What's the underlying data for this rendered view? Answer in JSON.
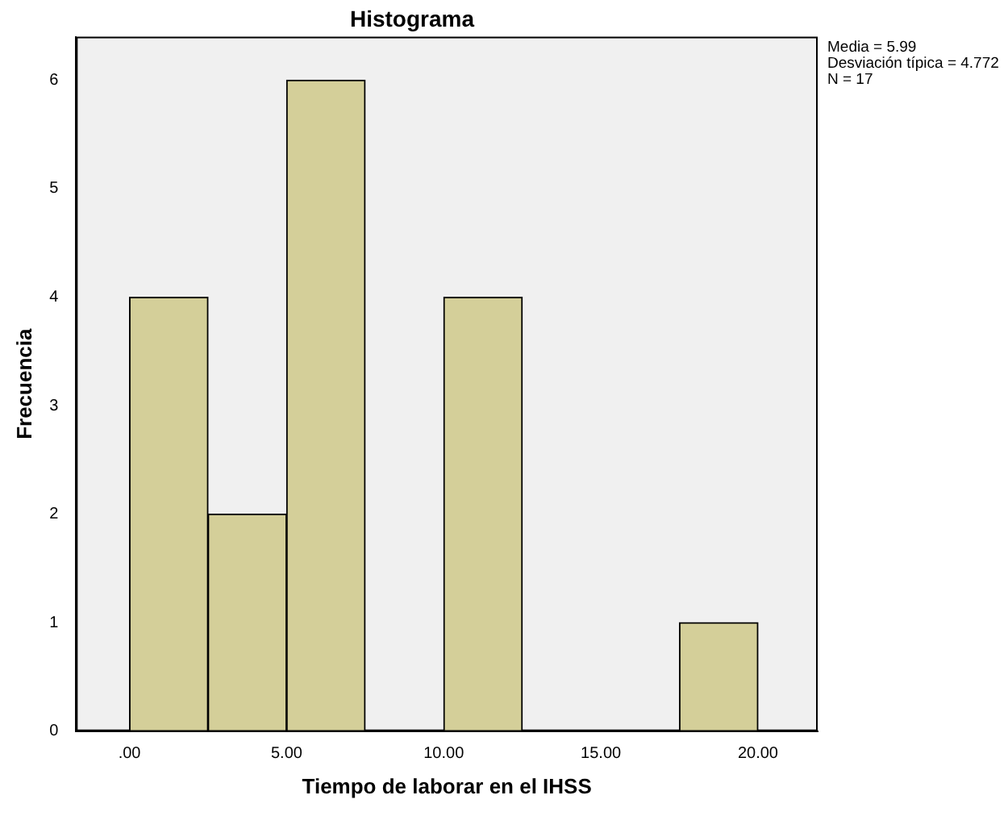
{
  "chart_data": {
    "type": "histogram",
    "title": "Histograma",
    "xlabel": "Tiempo de laborar en el IHSS",
    "ylabel": "Frecuencia",
    "bins": [
      0,
      2.5,
      5,
      7.5,
      10,
      12.5,
      15,
      17.5,
      20
    ],
    "values": [
      4,
      2,
      6,
      0,
      4,
      0,
      0,
      1
    ],
    "color": "#d4cf99",
    "xlim": [
      -1.7,
      21.9
    ],
    "ylim": [
      0,
      6.4
    ],
    "xticks": [
      {
        "value": 0,
        "label": ".00"
      },
      {
        "value": 5,
        "label": "5.00"
      },
      {
        "value": 10,
        "label": "10.00"
      },
      {
        "value": 15,
        "label": "15.00"
      },
      {
        "value": 20,
        "label": "20.00"
      }
    ],
    "yticks": [
      0,
      1,
      2,
      3,
      4,
      5,
      6
    ],
    "annotations": [
      "Media = 5.99",
      "Desviación típica = 4.772",
      "N = 17"
    ],
    "grid": false,
    "legend": false
  }
}
